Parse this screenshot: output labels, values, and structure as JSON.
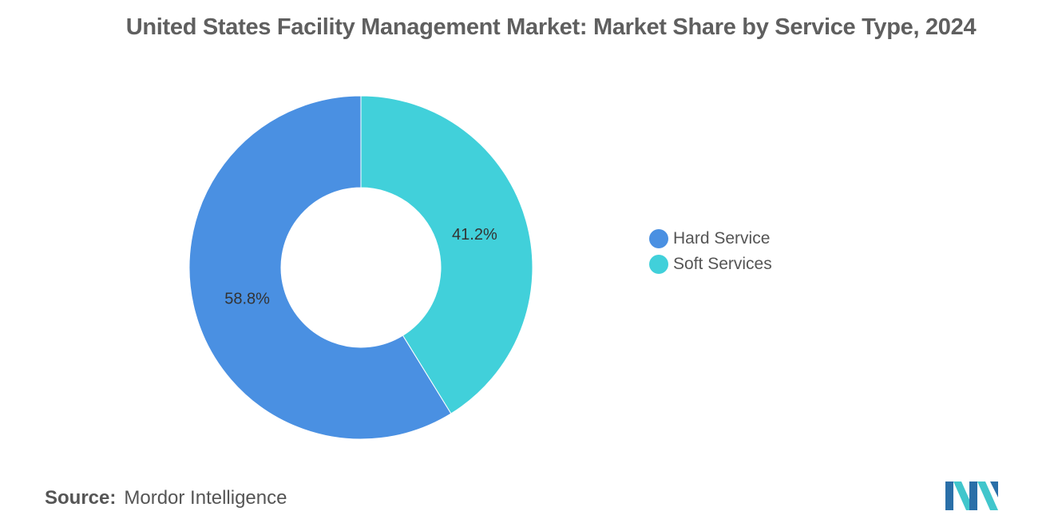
{
  "chart_data": {
    "type": "pie",
    "donut": true,
    "title": "United States Facility Management Market: Market Share by Service Type, 2024",
    "slices": [
      {
        "label": "Hard Service",
        "value": 58.8,
        "display": "58.8%",
        "color": "#4a90e2"
      },
      {
        "label": "Soft Services",
        "value": 41.2,
        "display": "41.2%",
        "color": "#41d0da"
      }
    ],
    "legend_position": "right"
  },
  "source": {
    "label": "Source:",
    "text": "Mordor Intelligence"
  },
  "logo": {
    "icon": "mordor-intelligence-logo-icon",
    "colors": [
      "#2a6fa8",
      "#41c6cc"
    ]
  }
}
